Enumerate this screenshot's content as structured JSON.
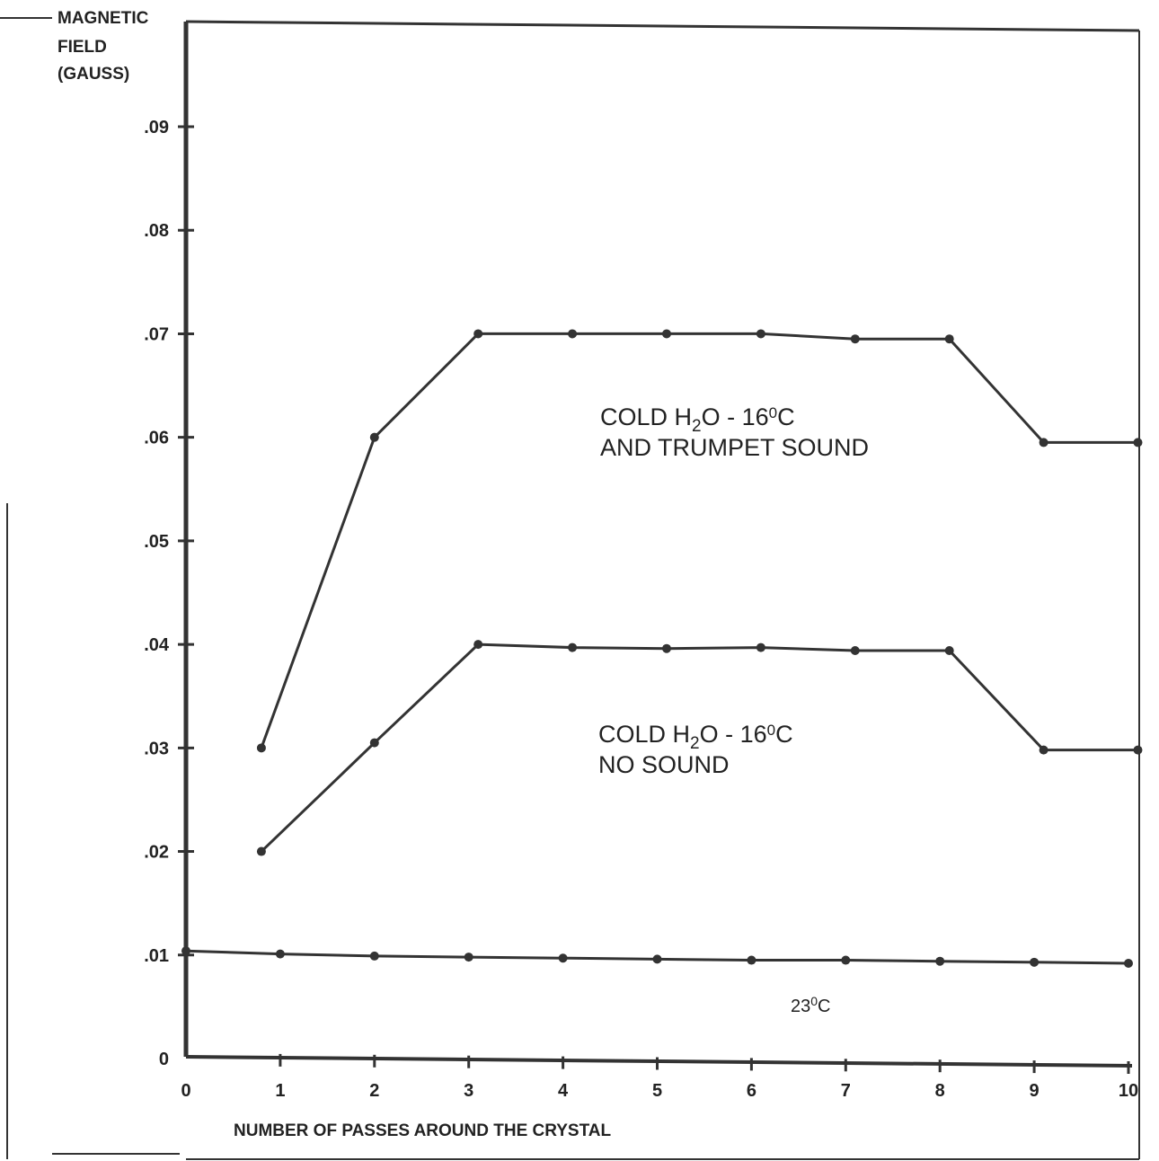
{
  "chart_data": {
    "type": "line",
    "ylabel": [
      "MAGNETIC",
      "FIELD",
      "(GAUSS)"
    ],
    "xlabel": "NUMBER OF PASSES AROUND THE CRYSTAL",
    "xlim": [
      0,
      10
    ],
    "ylim": [
      0,
      0.1
    ],
    "x_ticks": [
      "0",
      "1",
      "2",
      "3",
      "4",
      "5",
      "6",
      "7",
      "8",
      "9",
      "10"
    ],
    "y_ticks": [
      "0",
      ".01",
      ".02",
      ".03",
      ".04",
      ".05",
      ".06",
      ".07",
      ".08",
      ".09"
    ],
    "y_tick_values": [
      0,
      0.01,
      0.02,
      0.03,
      0.04,
      0.05,
      0.06,
      0.07,
      0.08,
      0.09
    ],
    "grid": false,
    "series": [
      {
        "annotation": [
          "COLD H",
          "2",
          "O  -  16",
          "0",
          "C"
        ],
        "annotation_line2": "AND TRUMPET SOUND",
        "x": [
          0.8,
          2,
          3.1,
          4.1,
          5.1,
          6.1,
          7.1,
          8.1,
          9.1,
          10.1
        ],
        "y": [
          0.03,
          0.06,
          0.07,
          0.07,
          0.07,
          0.07,
          0.0695,
          0.0695,
          0.0595,
          0.0595
        ]
      },
      {
        "annotation": [
          "COLD H",
          "2",
          "O  -  16",
          "0",
          "C"
        ],
        "annotation_line2": "NO SOUND",
        "x": [
          0.8,
          2,
          3.1,
          4.1,
          5.1,
          6.1,
          7.1,
          8.1,
          9.1,
          10.1
        ],
        "y": [
          0.02,
          0.0305,
          0.04,
          0.0397,
          0.0396,
          0.0397,
          0.0394,
          0.0394,
          0.0298,
          0.0298
        ]
      },
      {
        "annotation": [
          "23",
          "0",
          "C"
        ],
        "x": [
          0,
          1,
          2,
          3,
          4,
          5,
          6,
          7,
          8,
          9,
          10
        ],
        "y": [
          0.0104,
          0.0101,
          0.0099,
          0.0098,
          0.0097,
          0.0096,
          0.0095,
          0.0095,
          0.0094,
          0.0093,
          0.0092
        ]
      }
    ]
  }
}
